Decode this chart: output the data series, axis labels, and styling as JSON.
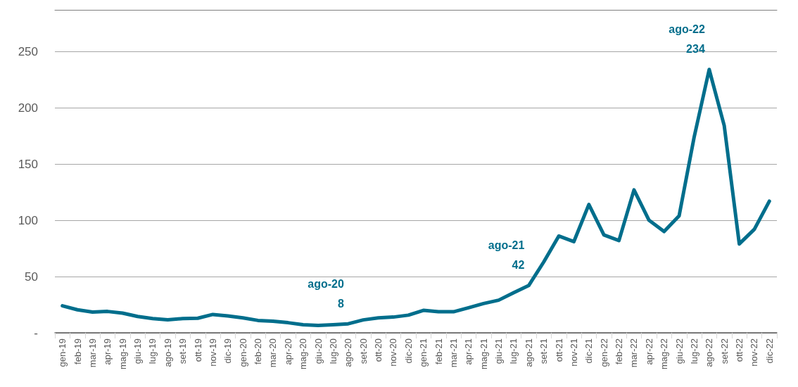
{
  "chart_data": {
    "type": "line",
    "categories": [
      "gen-19",
      "feb-19",
      "mar-19",
      "apr-19",
      "mag-19",
      "giu-19",
      "lug-19",
      "ago-19",
      "set-19",
      "ott-19",
      "nov-19",
      "dic-19",
      "gen-20",
      "feb-20",
      "mar-20",
      "apr-20",
      "mag-20",
      "giu-20",
      "lug-20",
      "ago-20",
      "set-20",
      "ott-20",
      "nov-20",
      "dic-20",
      "gen-21",
      "feb-21",
      "mar-21",
      "apr-21",
      "mag-21",
      "giu-21",
      "lug-21",
      "ago-21",
      "set-21",
      "ott-21",
      "nov-21",
      "dic-21",
      "gen-22",
      "feb-22",
      "mar-22",
      "apr-22",
      "mag-22",
      "giu-22",
      "lug-22",
      "ago-22",
      "set-22",
      "ott-22",
      "nov-22",
      "dic-22"
    ],
    "series": [
      {
        "color": "#006e8c",
        "values": [
          24,
          20.5,
          18.5,
          19,
          17.5,
          14.5,
          12.7,
          11.5,
          12.7,
          13,
          16.3,
          15,
          13.3,
          11,
          10.3,
          9,
          7.2,
          6.6,
          7.2,
          8,
          11.5,
          13.3,
          14,
          15.7,
          20,
          18.7,
          18.7,
          22.3,
          26,
          29,
          35.6,
          42,
          63,
          86,
          81,
          114,
          87,
          82,
          127,
          100,
          90,
          104,
          174,
          234,
          184,
          79,
          92,
          117
        ]
      }
    ],
    "annotations": [
      {
        "text": "ago-20\n8",
        "x": "ago-20",
        "y": 8
      },
      {
        "text": "ago-21\n42",
        "x": "ago-21",
        "y": 42
      },
      {
        "text": "ago-22\n234",
        "x": "ago-22",
        "y": 234
      }
    ],
    "ylim": [
      0,
      287
    ],
    "yticks": [
      {
        "value": 0,
        "label": "-"
      },
      50,
      100,
      150,
      200,
      250
    ],
    "grid": "y",
    "marker": "none",
    "line_style": "solid"
  }
}
